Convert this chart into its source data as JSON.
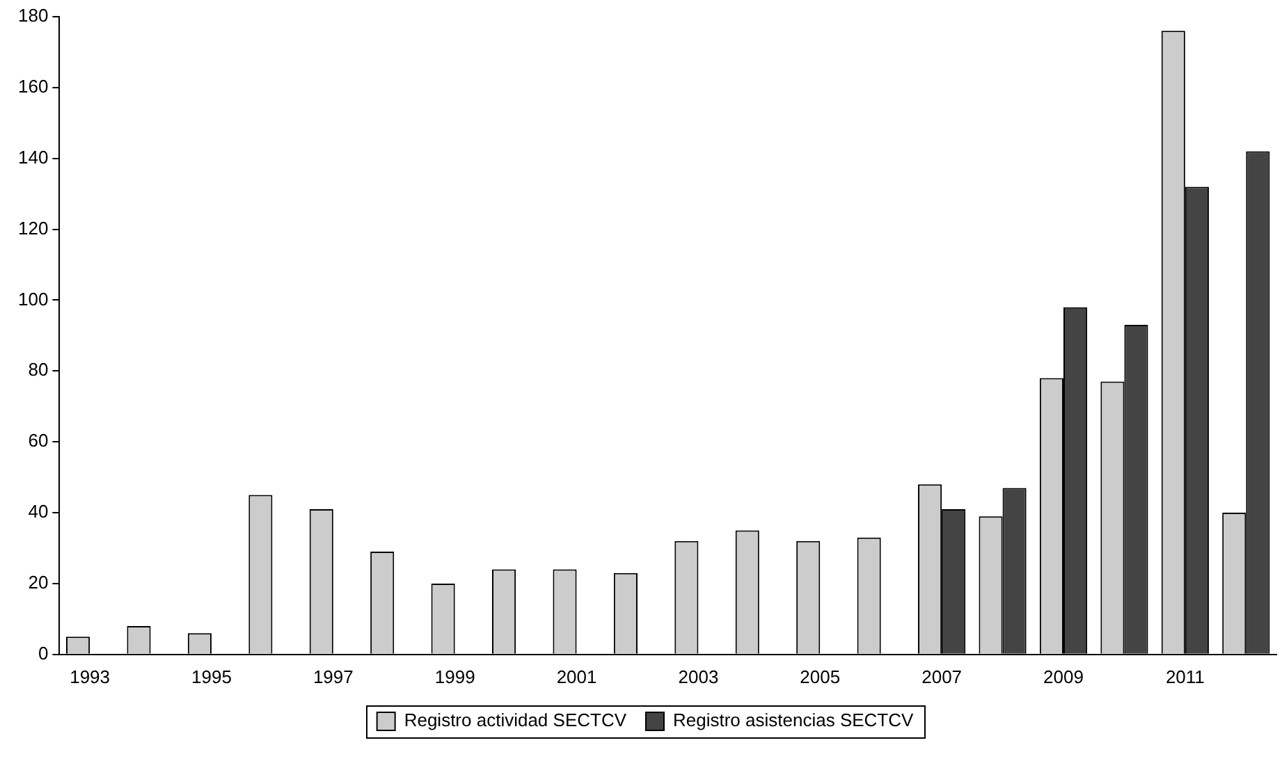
{
  "chart_data": {
    "type": "bar",
    "categories": [
      "1993",
      null,
      "1995",
      null,
      "1997",
      null,
      "1999",
      null,
      "2001",
      null,
      "2003",
      null,
      "2005",
      null,
      "2007",
      null,
      "2009",
      null,
      "2011",
      null
    ],
    "series": [
      {
        "name": "Registro actividad SECTCV",
        "color": "#cccccc",
        "values": [
          5,
          8,
          6,
          45,
          41,
          29,
          20,
          24,
          24,
          23,
          32,
          35,
          32,
          33,
          48,
          39,
          78,
          77,
          176,
          40
        ]
      },
      {
        "name": "Registro asistencias SECTCV",
        "color": "#444444",
        "values": [
          null,
          null,
          null,
          null,
          null,
          null,
          null,
          null,
          null,
          null,
          null,
          null,
          null,
          null,
          41,
          47,
          98,
          93,
          132,
          142
        ]
      }
    ],
    "ylim": [
      0,
      180
    ],
    "yticks": [
      0,
      20,
      40,
      60,
      80,
      100,
      120,
      140,
      160,
      180
    ],
    "grid": false,
    "legend": "bottom"
  }
}
